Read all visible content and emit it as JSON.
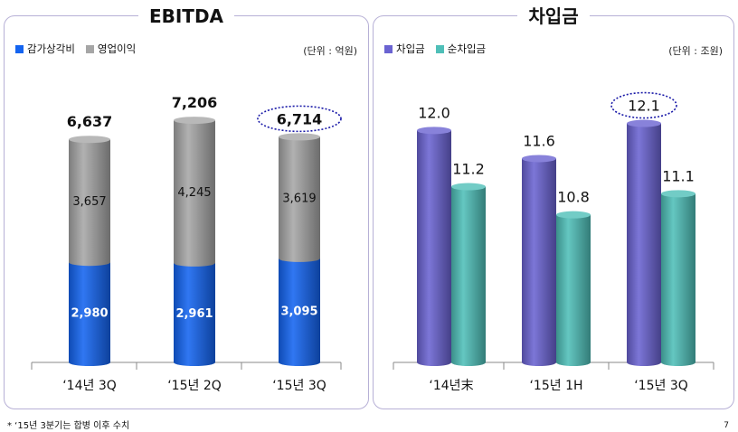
{
  "ebitda": {
    "title": "EBITDA",
    "unit": "(단위 : 억원)",
    "legend": [
      {
        "label": "감가상각비",
        "color": "#1464f0"
      },
      {
        "label": "영업이익",
        "color": "#a6a6a6"
      }
    ]
  },
  "borrowings": {
    "title": "차입금",
    "unit": "(단위 : 조원)",
    "legend": [
      {
        "label": "차입금",
        "color": "#6a63d1"
      },
      {
        "label": "순차입금",
        "color": "#4fbfb8"
      }
    ]
  },
  "footnote": "* ‘15년 3분기는 합병 이후 수치",
  "page_number": "7",
  "chart_data": [
    {
      "type": "bar",
      "stacked": true,
      "title": "EBITDA",
      "categories": [
        "‘14년 3Q",
        "‘15년 2Q",
        "‘15년 3Q"
      ],
      "series": [
        {
          "name": "감가상각비",
          "values": [
            2980,
            2961,
            3095
          ],
          "labels": [
            "2,980",
            "2,961",
            "3,095"
          ],
          "color": "#1464f0"
        },
        {
          "name": "영업이익",
          "values": [
            3657,
            4245,
            3619
          ],
          "labels": [
            "3,657",
            "4,245",
            "3,619"
          ],
          "color": "#a6a6a6"
        }
      ],
      "totals": [
        6637,
        7206,
        6714
      ],
      "total_labels": [
        "6,637",
        "7,206",
        "6,714"
      ],
      "highlight_total_index": 2,
      "ylim": [
        0,
        7800
      ]
    },
    {
      "type": "bar",
      "title": "차입금",
      "categories": [
        "‘14년末",
        "‘15년 1H",
        "‘15년 3Q"
      ],
      "series": [
        {
          "name": "차입금",
          "values": [
            12.0,
            11.6,
            12.1
          ],
          "labels": [
            "12.0",
            "11.6",
            "12.1"
          ],
          "color": "#6a63d1"
        },
        {
          "name": "순차입금",
          "values": [
            11.2,
            10.8,
            11.1
          ],
          "labels": [
            "11.2",
            "10.8",
            "11.1"
          ],
          "color": "#4fbfb8"
        }
      ],
      "highlight_index": {
        "series": 0,
        "category": 2
      },
      "ylim": [
        8.7,
        12.3
      ]
    }
  ]
}
